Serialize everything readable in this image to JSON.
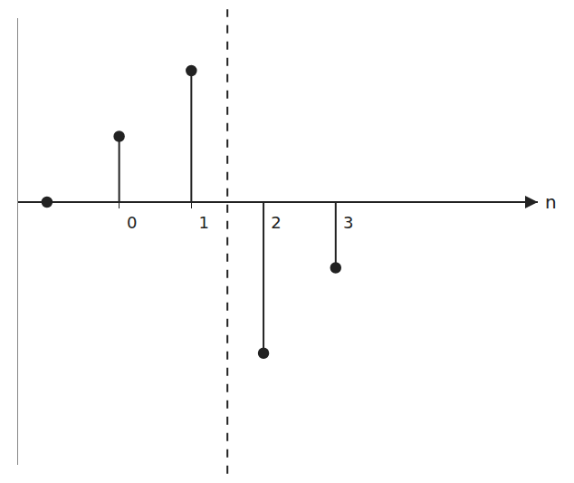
{
  "chart_data": {
    "type": "stem",
    "x": [
      -1,
      0,
      1,
      2,
      3
    ],
    "values": [
      0,
      1,
      2,
      -2.3,
      -1
    ],
    "color": "#222222",
    "marker": "circle",
    "xlabel": "n",
    "xlim": [
      -1.4,
      5.8
    ],
    "xticks": [
      0,
      1,
      2,
      3
    ],
    "ylim": [
      -4,
      2.8
    ],
    "yticks": [],
    "tick_labels": "x",
    "grid": false,
    "vertical_line": {
      "x": 1.5,
      "line_style": "dashed"
    }
  }
}
